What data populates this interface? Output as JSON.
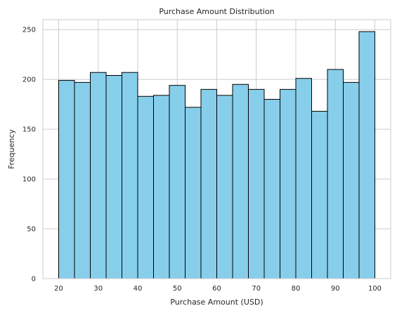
{
  "chart_data": {
    "type": "bar",
    "title": "Purchase Amount Distribution",
    "xlabel": "Purchase Amount (USD)",
    "ylabel": "Frequency",
    "bin_edges": [
      20,
      24,
      28,
      32,
      36,
      40,
      44,
      48,
      52,
      56,
      60,
      64,
      68,
      72,
      76,
      80,
      84,
      88,
      92,
      96,
      100
    ],
    "values": [
      199,
      197,
      207,
      204,
      207,
      183,
      184,
      194,
      172,
      190,
      184,
      195,
      190,
      180,
      190,
      201,
      168,
      210,
      197,
      248
    ],
    "xlim": [
      16,
      104
    ],
    "ylim": [
      0,
      260
    ],
    "xticks": [
      20,
      30,
      40,
      50,
      60,
      70,
      80,
      90,
      100
    ],
    "yticks": [
      0,
      50,
      100,
      150,
      200,
      250
    ],
    "grid": true,
    "bar_color": "#87ceeb",
    "edge_color": "#000000"
  }
}
